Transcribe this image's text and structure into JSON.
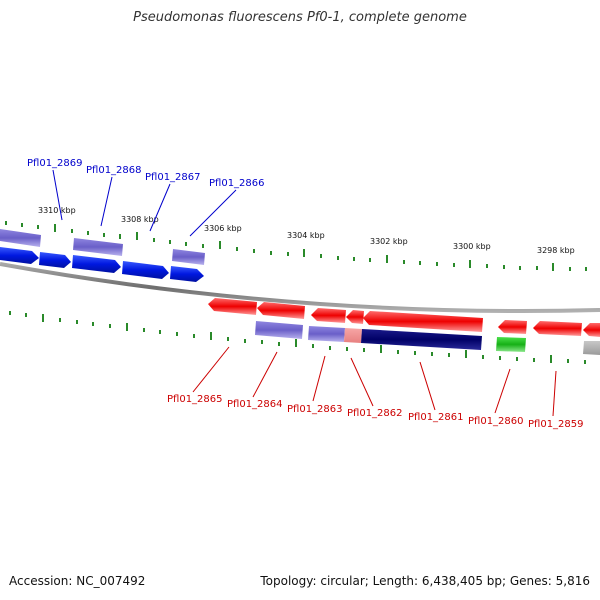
{
  "title": "Pseudomonas fluorescens Pf0-1, complete genome",
  "colors": {
    "forward_label": "#0000cc",
    "reverse_label": "#cc0000",
    "tick": "#2a8a2a",
    "backbone": "#808080"
  },
  "scale_labels": [
    "3310 kbp",
    "3308 kbp",
    "3306 kbp",
    "3304 kbp",
    "3302 kbp",
    "3300 kbp",
    "3298 kbp"
  ],
  "forward_labels": [
    "Pfl01_2869",
    "Pfl01_2868",
    "Pfl01_2867",
    "Pfl01_2866"
  ],
  "reverse_labels": [
    "Pfl01_2865",
    "Pfl01_2864",
    "Pfl01_2863",
    "Pfl01_2862",
    "Pfl01_2861",
    "Pfl01_2860",
    "Pfl01_2859"
  ],
  "footer": {
    "accession": "Accession: NC_007492",
    "info": "Topology: circular; Length: 6,438,405 bp; Genes: 5,816"
  }
}
